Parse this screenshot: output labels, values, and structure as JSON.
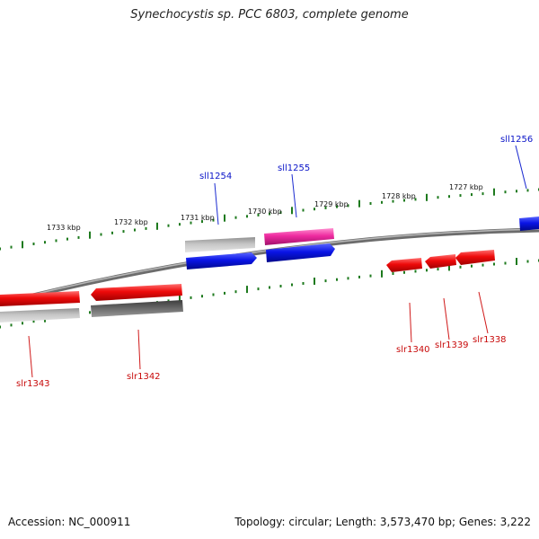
{
  "title": "Synechocystis sp. PCC 6803, complete genome",
  "footer": {
    "accession": "Accession: NC_000911",
    "summary": "Topology: circular; Length: 3,573,470 bp; Genes: 3,222"
  },
  "colors": {
    "forward_cds": "#0a14e6",
    "reverse_cds": "#ee0a0a",
    "forward_other": "#ee2ba0",
    "gray_light": "#b0b0b0",
    "gray_dark": "#5a5a5a",
    "ticks": "#1e7a1e",
    "backbone": "#888888",
    "label_forward": "#0a14c8",
    "label_reverse": "#c80a0a"
  },
  "scale_labels": [
    "1733 kbp",
    "1732 kbp",
    "1731 kbp",
    "1730 kbp",
    "1729 kbp",
    "1728 kbp",
    "1727 kbp"
  ],
  "gene_labels": {
    "top": [
      "sll1254",
      "sll1255",
      "sll1256"
    ],
    "bottom": [
      "slr1343",
      "slr1342",
      "slr1340",
      "slr1339",
      "slr1338"
    ]
  }
}
